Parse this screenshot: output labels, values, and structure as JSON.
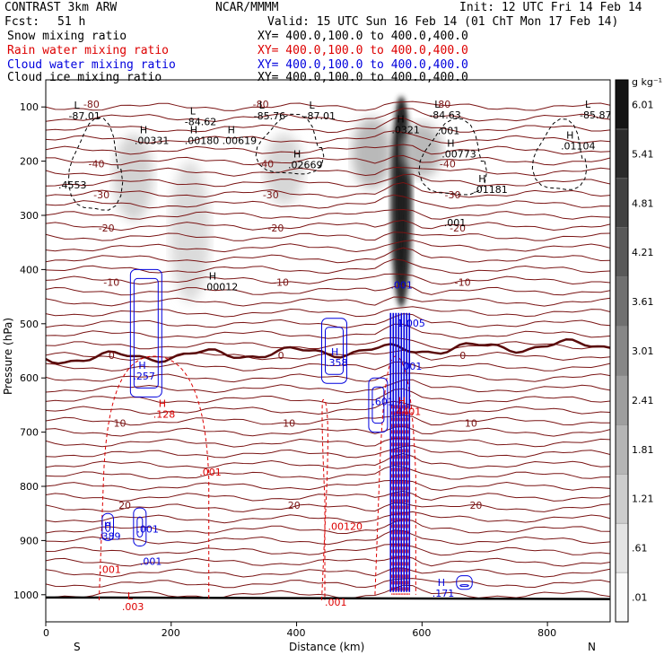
{
  "header": {
    "model": "CONTRAST  3km ARW",
    "org": "NCAR/MMMM",
    "init": "Init: 12 UTC Fri 14 Feb 14",
    "fcst_label": "Fcst:",
    "fcst_value": "51 h",
    "valid": "Valid: 15 UTC Sun 16 Feb 14 (01 ChT Mon 17 Feb 14)"
  },
  "fields": [
    {
      "name": "Snow mixing ratio",
      "xy": "XY= 400.0,100.0 to 400.0,400.0",
      "color": "#000000"
    },
    {
      "name": "Rain water mixing ratio",
      "xy": "XY= 400.0,100.0 to 400.0,400.0",
      "color": "#dd0000"
    },
    {
      "name": "Cloud water mixing ratio",
      "xy": "XY= 400.0,100.0 to 400.0,400.0",
      "color": "#0000dd"
    },
    {
      "name": "Cloud ice mixing ratio",
      "xy": "XY= 400.0,100.0 to 400.0,400.0",
      "color": "#000000"
    }
  ],
  "colorbar": {
    "unit": "g kg⁻¹",
    "levels": [
      ".01",
      ".61",
      "1.21",
      "1.81",
      "2.41",
      "3.01",
      "3.61",
      "4.21",
      "4.81",
      "5.41",
      "6.01"
    ]
  },
  "chart_data": {
    "type": "heatmap",
    "xlabel": "Distance (km)",
    "ylabel": "Pressure (hPa)",
    "xlim": [
      0,
      900
    ],
    "ylim": [
      1050,
      50
    ],
    "x_ticks": [
      "0",
      "200",
      "400",
      "600",
      "800"
    ],
    "x_tick_values": [
      0,
      200,
      400,
      600,
      800
    ],
    "y_ticks": [
      "100",
      "200",
      "300",
      "400",
      "500",
      "600",
      "700",
      "800",
      "900",
      "1000"
    ],
    "y_tick_values": [
      100,
      200,
      300,
      400,
      500,
      600,
      700,
      800,
      900,
      1000
    ],
    "end_labels": {
      "left": "S",
      "right": "N"
    },
    "temperature_contours": [
      {
        "label": "-80",
        "p": 95
      },
      {
        "label": "-40",
        "p": 205
      },
      {
        "label": "-30",
        "p": 262
      },
      {
        "label": "-20",
        "p": 323
      },
      {
        "label": "-10",
        "p": 423
      },
      {
        "label": "0",
        "p": 558
      },
      {
        "label": "10",
        "p": 683
      },
      {
        "label": "20",
        "p": 835
      }
    ],
    "snow_plumes": [
      {
        "x": 140,
        "p_top": 150,
        "p_bottom": 310,
        "intensity": 0.12
      },
      {
        "x": 230,
        "p_top": 200,
        "p_bottom": 460,
        "intensity": 0.08
      },
      {
        "x": 380,
        "p_top": 150,
        "p_bottom": 280,
        "intensity": 0.1
      },
      {
        "x": 520,
        "p_top": 120,
        "p_bottom": 250,
        "intensity": 0.25
      },
      {
        "x": 567,
        "p_top": 80,
        "p_bottom": 470,
        "intensity": 0.95
      },
      {
        "x": 600,
        "p_top": 130,
        "p_bottom": 230,
        "intensity": 0.25
      }
    ],
    "extrema_labels": [
      {
        "kind": "L",
        "value": "-87.01",
        "x": 45,
        "p": 110,
        "color": "black"
      },
      {
        "kind": "L",
        "value": "-84.62",
        "x": 230,
        "p": 120,
        "color": "black"
      },
      {
        "kind": "L",
        "value": "-85.76",
        "x": 340,
        "p": 110,
        "color": "black"
      },
      {
        "kind": "L",
        "value": "-87.01",
        "x": 420,
        "p": 110,
        "color": "black"
      },
      {
        "kind": "L",
        "value": "-84.63",
        "x": 620,
        "p": 108,
        "color": "black"
      },
      {
        "kind": "L",
        "value": "-85.87",
        "x": 860,
        "p": 108,
        "color": "black"
      },
      {
        "kind": "H",
        "value": ".00331",
        "x": 150,
        "p": 155,
        "color": "black"
      },
      {
        "kind": "H",
        "value": ".00180",
        "x": 230,
        "p": 155,
        "color": "black"
      },
      {
        "kind": "H",
        "value": ".00619",
        "x": 290,
        "p": 155,
        "color": "black"
      },
      {
        "kind": "H",
        "value": ".02669",
        "x": 395,
        "p": 200,
        "color": "black"
      },
      {
        "kind": "H",
        "value": ".0321",
        "x": 560,
        "p": 135,
        "color": "black"
      },
      {
        "kind": "H",
        "value": ".00773",
        "x": 640,
        "p": 180,
        "color": "black"
      },
      {
        "kind": "H",
        "value": ".01104",
        "x": 830,
        "p": 165,
        "color": "black"
      },
      {
        "kind": "H",
        "value": ".01181",
        "x": 690,
        "p": 245,
        "color": "black"
      },
      {
        "kind": "H",
        "value": ".00012",
        "x": 260,
        "p": 425,
        "color": "black"
      },
      {
        "kind": "H",
        "value": ".257",
        "x": 148,
        "p": 590,
        "color": "blue"
      },
      {
        "kind": "H",
        "value": ".358",
        "x": 455,
        "p": 565,
        "color": "blue"
      },
      {
        "kind": "H",
        "value": ".389",
        "x": 93,
        "p": 885,
        "color": "blue"
      },
      {
        "kind": "H",
        "value": ".171",
        "x": 625,
        "p": 990,
        "color": "blue"
      },
      {
        "kind": "H",
        "value": ".128",
        "x": 180,
        "p": 660,
        "color": "red"
      },
      {
        "kind": "H",
        "value": ".4401",
        "x": 562,
        "p": 655,
        "color": "red"
      },
      {
        "kind": "L",
        "value": ".003",
        "x": 130,
        "p": 1015,
        "color": "red"
      }
    ],
    "other_labels": [
      {
        "text": ".4553",
        "x": 20,
        "p": 250,
        "color": "black"
      },
      {
        "text": ".001",
        "x": 625,
        "p": 150,
        "color": "black"
      },
      {
        "text": ".001",
        "x": 635,
        "p": 320,
        "color": "black"
      },
      {
        "text": ".001",
        "x": 550,
        "p": 435,
        "color": "blue"
      },
      {
        "text": "1.005",
        "x": 560,
        "p": 505,
        "color": "blue"
      },
      {
        "text": ".001",
        "x": 565,
        "p": 585,
        "color": "blue"
      },
      {
        "text": ".601",
        "x": 520,
        "p": 650,
        "color": "blue"
      },
      {
        "text": ".001",
        "x": 145,
        "p": 885,
        "color": "blue"
      },
      {
        "text": ".001",
        "x": 150,
        "p": 945,
        "color": "blue"
      },
      {
        "text": ".001",
        "x": 245,
        "p": 780,
        "color": "red"
      },
      {
        "text": ".001",
        "x": 85,
        "p": 960,
        "color": "red"
      },
      {
        "text": ".001",
        "x": 445,
        "p": 1020,
        "color": "red"
      },
      {
        "text": ".00120",
        "x": 450,
        "p": 880,
        "color": "red"
      }
    ]
  }
}
